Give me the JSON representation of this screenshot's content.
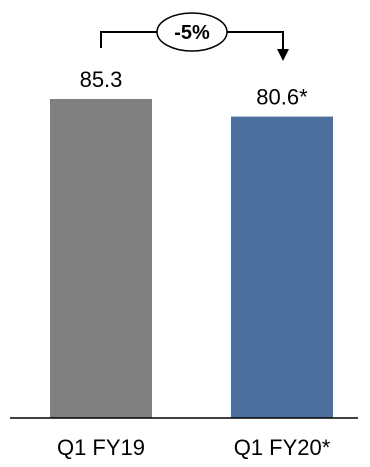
{
  "chart_data": {
    "type": "bar",
    "categories": [
      "Q1 FY19",
      "Q1 FY20*"
    ],
    "values": [
      85.3,
      80.6
    ],
    "value_labels": [
      "85.3",
      "80.6*"
    ],
    "colors": [
      "#808080",
      "#4d6f9e"
    ],
    "change_annotation": "-5%",
    "ylim": [
      0,
      100
    ],
    "grid": false,
    "legend": "none"
  }
}
